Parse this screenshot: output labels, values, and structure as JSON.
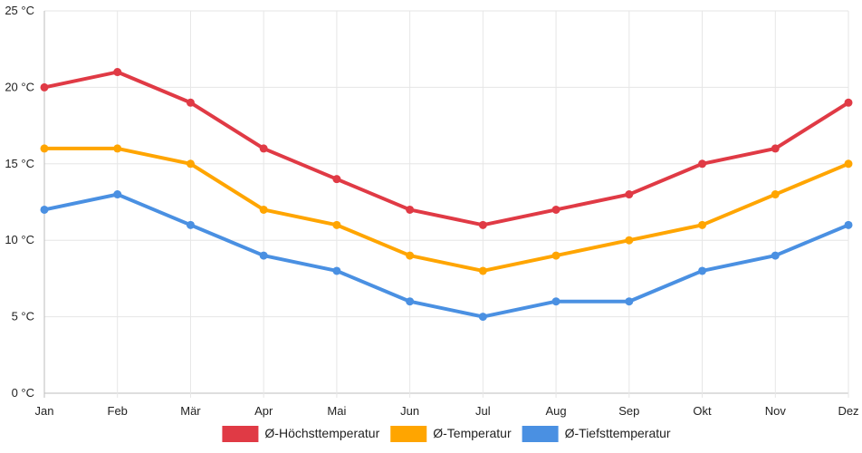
{
  "chart_data": {
    "type": "line",
    "categories": [
      "Jan",
      "Feb",
      "Mär",
      "Apr",
      "Mai",
      "Jun",
      "Jul",
      "Aug",
      "Sep",
      "Okt",
      "Nov",
      "Dez"
    ],
    "y_ticks": [
      "0 °C",
      "5 °C",
      "10 °C",
      "15 °C",
      "20 °C",
      "25 °C"
    ],
    "ylim": [
      0,
      25
    ],
    "grid": true,
    "legend_position": "bottom",
    "series": [
      {
        "name": "Ø-Höchsttemperatur",
        "color": "#e03a45",
        "values": [
          20,
          21,
          19,
          16,
          14,
          12,
          11,
          12,
          13,
          15,
          16,
          19
        ]
      },
      {
        "name": "Ø-Temperatur",
        "color": "#ffa500",
        "values": [
          16,
          16,
          15,
          12,
          11,
          9,
          8,
          9,
          10,
          11,
          13,
          15
        ]
      },
      {
        "name": "Ø-Tiefsttemperatur",
        "color": "#4a90e2",
        "values": [
          12,
          13,
          11,
          9,
          8,
          6,
          5,
          6,
          6,
          8,
          9,
          11
        ]
      }
    ]
  }
}
